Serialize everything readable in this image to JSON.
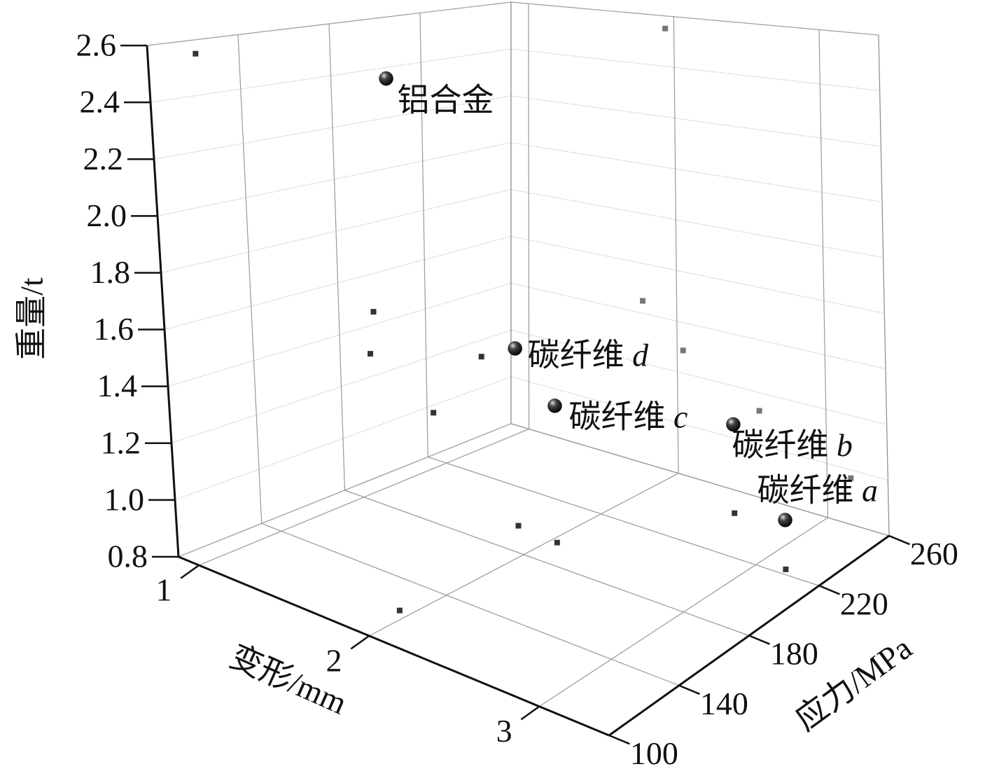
{
  "chart_data": {
    "type": "scatter3d",
    "xlabel": "变形/mm",
    "ylabel": "应力/MPa",
    "zlabel": "重量/t",
    "xlim": [
      0.88,
      3.41
    ],
    "ylim": [
      100,
      260
    ],
    "zlim": [
      0.8,
      2.6
    ],
    "xticks": [
      1,
      2,
      3
    ],
    "yticks": [
      100,
      140,
      180,
      220,
      260
    ],
    "zticks": [
      0.8,
      {
        "value": 1,
        "label": "1.0"
      },
      1.2,
      1.4,
      1.6,
      1.8,
      {
        "value": 2,
        "label": "2.0"
      },
      2.2,
      2.4,
      2.6
    ],
    "grid": true,
    "series": [
      {
        "color": "#111111",
        "labels": [
          "铝合金",
          "碳纤维 d",
          "碳纤维 c",
          "碳纤维 b",
          "碳纤维 a"
        ],
        "x": [
          1.94,
          1.77,
          2.04,
          2.55,
          3.16
        ],
        "y": [
          121,
          196,
          194,
          246,
          223
        ],
        "z": [
          2.55,
          1.45,
          1.29,
          1.13,
          0.97
        ]
      }
    ]
  }
}
